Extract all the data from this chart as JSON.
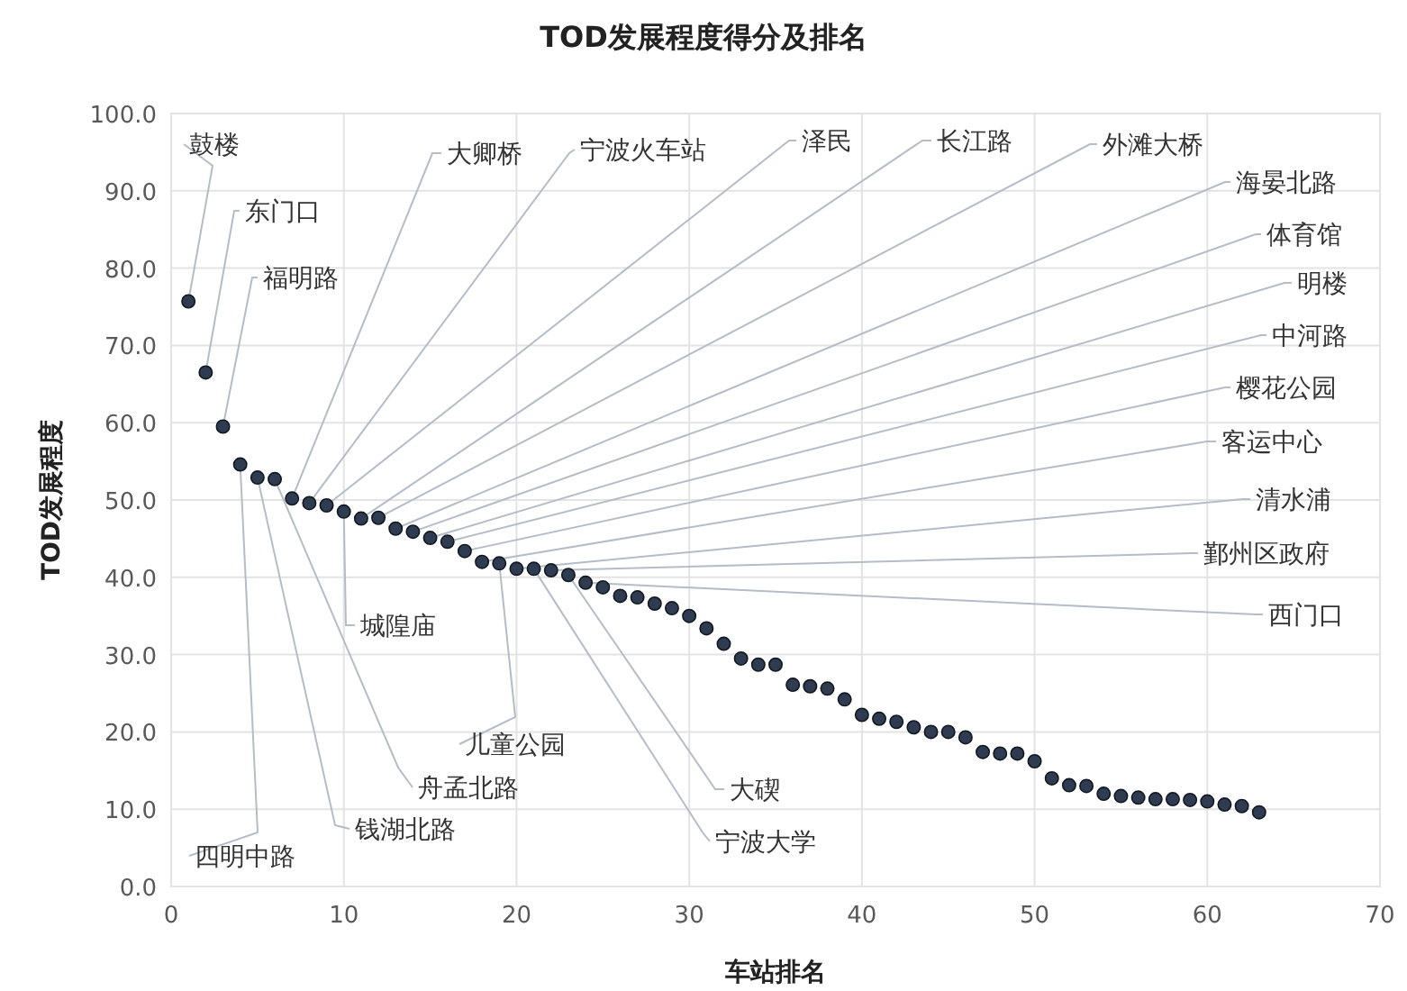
{
  "chart_data": {
    "type": "scatter",
    "title": "TOD发展程度得分及排名",
    "xlabel": "车站排名",
    "ylabel": "TOD发展程度",
    "x": [
      1,
      2,
      3,
      4,
      5,
      6,
      7,
      8,
      9,
      10,
      11,
      12,
      13,
      14,
      15,
      16,
      17,
      18,
      19,
      20,
      21,
      22,
      23,
      24,
      25,
      26,
      27,
      28,
      29,
      30,
      31,
      32,
      33,
      34,
      35,
      36,
      37,
      38,
      39,
      40,
      41,
      42,
      43,
      44,
      45,
      46,
      47,
      48,
      49,
      50,
      51,
      52,
      53,
      54,
      55,
      56,
      57,
      58,
      59,
      60,
      61,
      62,
      63
    ],
    "series": [
      {
        "color": "#2e3b50",
        "values": [
          75.7,
          66.5,
          59.5,
          54.6,
          52.9,
          52.7,
          50.2,
          49.6,
          49.3,
          48.5,
          47.6,
          47.7,
          46.3,
          45.9,
          45.1,
          44.6,
          43.4,
          42.0,
          41.8,
          41.1,
          41.1,
          40.9,
          40.3,
          39.3,
          38.7,
          37.6,
          37.4,
          36.6,
          36.0,
          35.0,
          33.4,
          31.4,
          29.5,
          28.7,
          28.7,
          26.1,
          25.9,
          25.6,
          24.2,
          22.2,
          21.7,
          21.3,
          20.6,
          20.0,
          20.0,
          19.3,
          17.4,
          17.2,
          17.2,
          16.2,
          14.0,
          13.1,
          13.0,
          12.0,
          11.7,
          11.5,
          11.3,
          11.3,
          11.2,
          11.0,
          10.6,
          10.4,
          9.6
        ]
      }
    ],
    "xlim": [
      0,
      70
    ],
    "xticks": [
      0,
      10,
      20,
      30,
      40,
      50,
      60,
      70
    ],
    "ylim": [
      0,
      100
    ],
    "yticks": [
      {
        "value": 0,
        "label": "0.0"
      },
      {
        "value": 10,
        "label": "10.0"
      },
      {
        "value": 20,
        "label": "20.0"
      },
      {
        "value": 30,
        "label": "30.0"
      },
      {
        "value": 40,
        "label": "40.0"
      },
      {
        "value": 50,
        "label": "50.0"
      },
      {
        "value": 60,
        "label": "60.0"
      },
      {
        "value": 70,
        "label": "70.0"
      },
      {
        "value": 80,
        "label": "80.0"
      },
      {
        "value": 90,
        "label": "90.0"
      },
      {
        "value": 100,
        "label": "100.0"
      }
    ],
    "grid": true,
    "marker": "circle",
    "annotations": [
      {
        "text": "鼓楼",
        "x": 1,
        "y": 75.7
      },
      {
        "text": "东门口",
        "x": 2,
        "y": 66.5
      },
      {
        "text": "福明路",
        "x": 3,
        "y": 59.5
      },
      {
        "text": "四明中路",
        "x": 4,
        "y": 54.6
      },
      {
        "text": "钱湖北路",
        "x": 5,
        "y": 52.9
      },
      {
        "text": "舟孟北路",
        "x": 6,
        "y": 52.7
      },
      {
        "text": "大卿桥",
        "x": 7,
        "y": 50.2
      },
      {
        "text": "宁波火车站",
        "x": 8,
        "y": 49.6
      },
      {
        "text": "泽民",
        "x": 9,
        "y": 49.3
      },
      {
        "text": "城隍庙",
        "x": 10,
        "y": 48.5
      },
      {
        "text": "长江路",
        "x": 11,
        "y": 47.6
      },
      {
        "text": "外滩大桥",
        "x": 12,
        "y": 47.7
      },
      {
        "text": "海晏北路",
        "x": 13,
        "y": 46.3
      },
      {
        "text": "体育馆",
        "x": 14,
        "y": 45.9
      },
      {
        "text": "明楼",
        "x": 15,
        "y": 45.1
      },
      {
        "text": "中河路",
        "x": 16,
        "y": 44.6
      },
      {
        "text": "樱花公园",
        "x": 17,
        "y": 43.4
      },
      {
        "text": "客运中心",
        "x": 18,
        "y": 42.0
      },
      {
        "text": "儿童公园",
        "x": 19,
        "y": 41.8
      },
      {
        "text": "清水浦",
        "x": 20,
        "y": 41.1
      },
      {
        "text": "宁波大学",
        "x": 21,
        "y": 41.1
      },
      {
        "text": "鄞州区政府",
        "x": 22,
        "y": 40.9
      },
      {
        "text": "大碶",
        "x": 23,
        "y": 40.3
      },
      {
        "text": "西门口",
        "x": 24,
        "y": 39.3
      }
    ]
  }
}
